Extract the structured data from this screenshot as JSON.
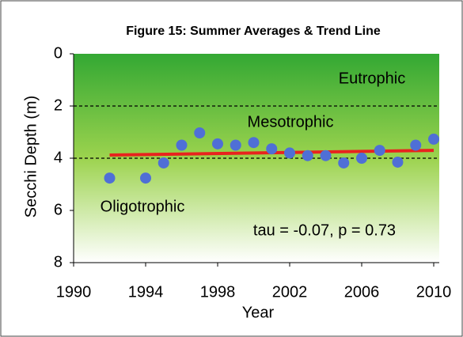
{
  "chart_data": {
    "type": "scatter",
    "title": "Figure 15:  Summer Averages & Trend Line",
    "x_label": "Year",
    "y_label": "Secchi Depth (m)",
    "x": [
      1992,
      1994,
      1995,
      1996,
      1997,
      1998,
      1999,
      2000,
      2001,
      2002,
      2003,
      2004,
      2005,
      2006,
      2007,
      2008,
      2009,
      2010
    ],
    "series": [
      {
        "name": "Summer Averages",
        "color": "#4f6fd6",
        "values": [
          4.76,
          4.76,
          4.18,
          3.5,
          3.03,
          3.45,
          3.5,
          3.4,
          3.64,
          3.8,
          3.9,
          3.9,
          4.18,
          4.0,
          3.7,
          4.15,
          3.5,
          3.27
        ]
      }
    ],
    "trend_line": {
      "name": "Trend Line",
      "color": "#e8231e",
      "x": [
        1992,
        2010
      ],
      "values": [
        3.88,
        3.7
      ]
    },
    "reference_lines": [
      2,
      4
    ],
    "annotations": [
      "Eutrophic",
      "Mesotrophic",
      "Oligotrophic",
      "tau = -0.07, p = 0.73"
    ],
    "xlim": [
      1990,
      2010
    ],
    "xticks": [
      1990,
      1994,
      1998,
      2002,
      2006,
      2010
    ],
    "ylim": [
      0,
      8
    ],
    "yticks": [
      0,
      2,
      4,
      6,
      8
    ],
    "y_inverted": true,
    "legend": false
  }
}
